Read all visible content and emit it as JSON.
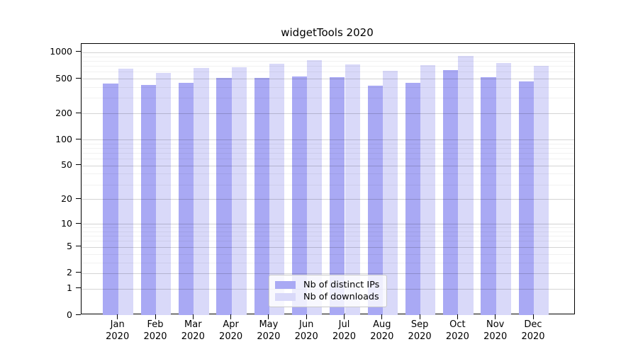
{
  "title": "widgetTools 2020",
  "legend": {
    "items": [
      {
        "label": "Nb of distinct IPs",
        "color": "#a9a9f4"
      },
      {
        "label": "Nb of downloads",
        "color": "#d9d9f9"
      }
    ]
  },
  "chart_data": {
    "type": "bar",
    "title": "widgetTools 2020",
    "categories": [
      "Jan",
      "Feb",
      "Mar",
      "Apr",
      "May",
      "Jun",
      "Jul",
      "Aug",
      "Sep",
      "Oct",
      "Nov",
      "Dec"
    ],
    "category_year": "2020",
    "series": [
      {
        "name": "Nb of distinct IPs",
        "color": "#a9a9f4",
        "values": [
          435,
          424,
          450,
          510,
          512,
          525,
          515,
          412,
          450,
          625,
          520,
          465
        ]
      },
      {
        "name": "Nb of downloads",
        "color": "#d9d9f9",
        "values": [
          655,
          576,
          660,
          670,
          745,
          805,
          730,
          618,
          715,
          915,
          750,
          705
        ]
      }
    ],
    "y_scale": "log1p",
    "y_major_ticks": [
      0,
      1,
      2,
      5,
      10,
      20,
      50,
      100,
      200,
      500,
      1000
    ],
    "y_minor_ticks": [
      3,
      4,
      6,
      7,
      8,
      9,
      30,
      40,
      60,
      70,
      80,
      90,
      300,
      400,
      600,
      700,
      800,
      900
    ],
    "ylim": [
      0,
      1200
    ],
    "grid": "major and minor horizontal gridlines drawn over bars",
    "legend_position": "lower center",
    "bar_layout": "grouped pairs, IPs left / downloads right, touching"
  }
}
